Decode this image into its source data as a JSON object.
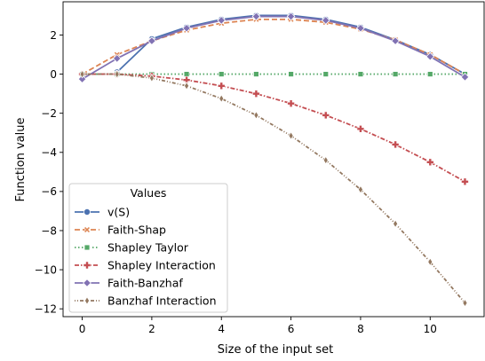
{
  "chart_data": {
    "type": "line",
    "title": "",
    "xlabel": "Size of the input set",
    "ylabel": "Function value",
    "xlim": [
      -0.55,
      11.55
    ],
    "ylim": [
      -12.4,
      3.7
    ],
    "xticks": [
      0,
      2,
      4,
      6,
      8,
      10
    ],
    "yticks": [
      2,
      0,
      -2,
      -4,
      -6,
      -8,
      -10,
      -12
    ],
    "grid": false,
    "legend": {
      "title": "Values",
      "placement": "lower-left"
    },
    "series": [
      {
        "name": "v(S)",
        "color": "#4c72b0",
        "dash": "",
        "marker": "circle",
        "x": [
          1,
          2,
          3,
          4,
          5,
          6,
          7,
          8,
          9,
          10,
          11
        ],
        "y": [
          0.1,
          1.8,
          2.4,
          2.8,
          3.0,
          3.0,
          2.8,
          2.4,
          1.75,
          1.0,
          0.0
        ]
      },
      {
        "name": "Faith-Shap",
        "color": "#dd8452",
        "dash": "6,3",
        "marker": "x",
        "x": [
          0,
          1,
          2,
          3,
          4,
          5,
          6,
          7,
          8,
          9,
          10,
          11
        ],
        "y": [
          0.0,
          1.0,
          1.7,
          2.25,
          2.6,
          2.8,
          2.8,
          2.65,
          2.3,
          1.75,
          1.0,
          0.0
        ]
      },
      {
        "name": "Shapley Taylor",
        "color": "#55a868",
        "dash": "1.5,2.5",
        "marker": "square",
        "x": [
          0,
          1,
          2,
          3,
          4,
          5,
          6,
          7,
          8,
          9,
          10,
          11
        ],
        "y": [
          0,
          0,
          0,
          0,
          0,
          0,
          0,
          0,
          0,
          0,
          0,
          0
        ]
      },
      {
        "name": "Shapley Interaction",
        "color": "#c44e52",
        "dash": "5,2,1.5,2",
        "marker": "plus",
        "x": [
          0,
          1,
          2,
          3,
          4,
          5,
          6,
          7,
          8,
          9,
          10,
          11
        ],
        "y": [
          0.0,
          0.0,
          -0.1,
          -0.3,
          -0.6,
          -1.0,
          -1.5,
          -2.1,
          -2.8,
          -3.6,
          -4.5,
          -5.5
        ]
      },
      {
        "name": "Faith-Banzhaf",
        "color": "#8172b3",
        "dash": "",
        "marker": "diamond",
        "x": [
          0,
          1,
          2,
          3,
          4,
          5,
          6,
          7,
          8,
          9,
          10,
          11
        ],
        "y": [
          -0.25,
          0.8,
          1.7,
          2.35,
          2.75,
          2.95,
          2.95,
          2.75,
          2.35,
          1.7,
          0.9,
          -0.15
        ]
      },
      {
        "name": "Banzhaf Interaction",
        "color": "#937860",
        "dash": "1,2,1,2,4,2",
        "marker": "thin-diamond",
        "x": [
          0,
          1,
          2,
          3,
          4,
          5,
          6,
          7,
          8,
          9,
          10,
          11
        ],
        "y": [
          0.0,
          0.0,
          -0.2,
          -0.6,
          -1.25,
          -2.1,
          -3.15,
          -4.4,
          -5.9,
          -7.65,
          -9.6,
          -11.7
        ]
      }
    ]
  }
}
